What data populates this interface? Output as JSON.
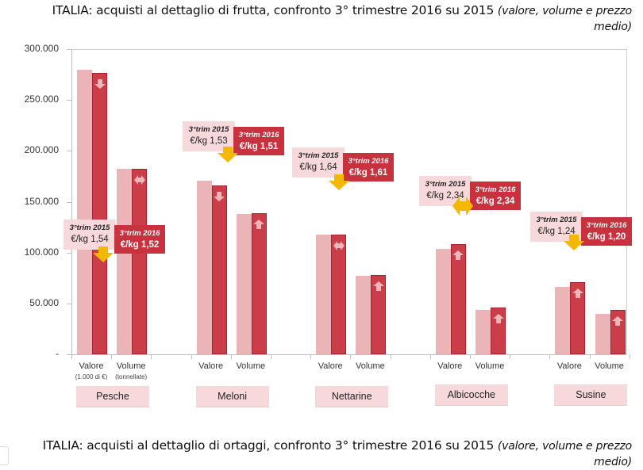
{
  "titles": {
    "top": {
      "main": "ITALIA: acquisti al dettaglio di frutta, confronto 3° trimestre 2016 su 2015",
      "italic": "(valore, volume e prezzo medio)"
    },
    "bottom": {
      "main": "ITALIA: acquisti al dettaglio di ortaggi, confronto 3° trimestre 2016 su 2015",
      "italic": "(valore, volume e prezzo medio)"
    }
  },
  "colors": {
    "bar_2015": "#ebb5b8",
    "bar_2016": "#cc3d4a",
    "callout_2015": "#f7d9db",
    "callout_2016": "#c8323f",
    "price_arrow": "#f5b800",
    "category_box": "#f7d9db"
  },
  "y_axis": {
    "ticks": [
      "300.000",
      "250.000",
      "200.000",
      "150.000",
      "100.000",
      "50.000",
      "-"
    ]
  },
  "chart_data": {
    "type": "bar",
    "title": "ITALIA: acquisti al dettaglio di frutta, confronto 3° trimestre 2016 su 2015 (valore, volume e prezzo medio)",
    "xlabel": "",
    "ylabel": "",
    "ylim": [
      0,
      300000
    ],
    "y_ticks": [
      0,
      50000,
      100000,
      150000,
      200000,
      250000,
      300000
    ],
    "grid": false,
    "legend": "none (2015 = light pink, 2016 = dark red)",
    "measures": [
      {
        "key": "valore",
        "label": "Valore",
        "unit": "(1.000 di €)"
      },
      {
        "key": "volume",
        "label": "Volume",
        "unit": "(tonnellate)"
      }
    ],
    "groups": [
      {
        "category": "Pesche",
        "valore": {
          "2015": 280000,
          "2016": 277000,
          "trend": "down"
        },
        "volume": {
          "2015": 182000,
          "2016": 182000,
          "trend": "stable"
        },
        "price": {
          "label_2015": "3°trim 2015",
          "value_2015": "€/kg 1,54",
          "label_2016": "3°trim 2016",
          "value_2016": "€/kg 1,52",
          "trend": "down"
        }
      },
      {
        "category": "Meloni",
        "valore": {
          "2015": 171000,
          "2016": 166000,
          "trend": "down"
        },
        "volume": {
          "2015": 138000,
          "2016": 139000,
          "trend": "up"
        },
        "price": {
          "label_2015": "3°trim 2015",
          "value_2015": "€/kg 1,53",
          "label_2016": "3°trim 2016",
          "value_2016": "€/kg 1,51",
          "trend": "down"
        }
      },
      {
        "category": "Nettarine",
        "valore": {
          "2015": 118000,
          "2016": 118000,
          "trend": "stable"
        },
        "volume": {
          "2015": 77000,
          "2016": 78000,
          "trend": "up"
        },
        "price": {
          "label_2015": "3°trim 2015",
          "value_2015": "€/kg 1,64",
          "label_2016": "3°trim 2016",
          "value_2016": "€/kg 1,61",
          "trend": "down"
        }
      },
      {
        "category": "Albicocche",
        "valore": {
          "2015": 104000,
          "2016": 108000,
          "trend": "up"
        },
        "volume": {
          "2015": 44000,
          "2016": 46000,
          "trend": "up"
        },
        "price": {
          "label_2015": "3°trim 2015",
          "value_2015": "€/kg 2,34",
          "label_2016": "3°trim 2016",
          "value_2016": "€/kg 2,34",
          "trend": "stable"
        }
      },
      {
        "category": "Susine",
        "valore": {
          "2015": 66000,
          "2016": 71000,
          "trend": "up"
        },
        "volume": {
          "2015": 40000,
          "2016": 44000,
          "trend": "up"
        },
        "price": {
          "label_2015": "3°trim 2015",
          "value_2015": "€/kg 1,24",
          "label_2016": "3°trim 2016",
          "value_2016": "€/kg  1,20",
          "trend": "down"
        }
      }
    ]
  }
}
